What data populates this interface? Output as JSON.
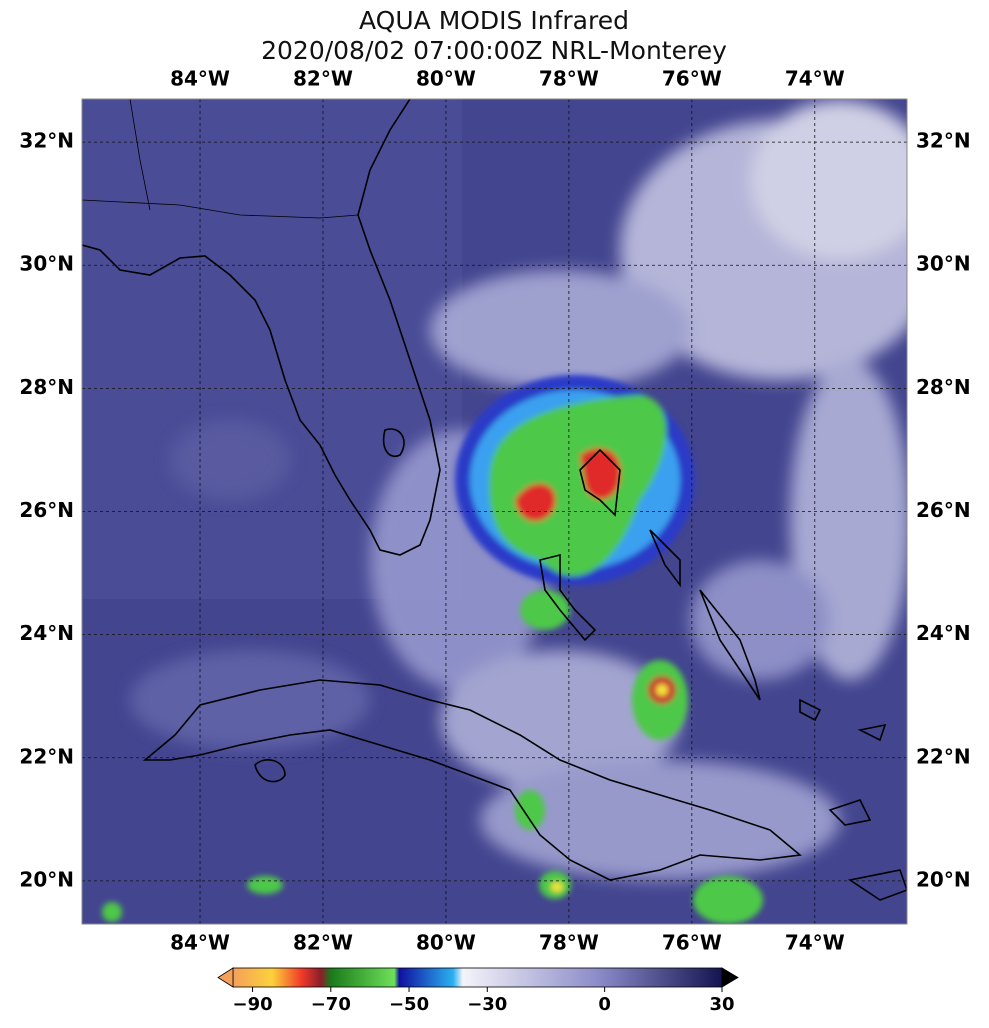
{
  "header": {
    "title": "AQUA MODIS Infrared",
    "subtitle": "2020/08/02 07:00:00Z NRL-Monterey"
  },
  "map": {
    "lon_lim": [
      -85.92,
      -72.5
    ],
    "lat_lim": [
      19.3,
      32.7
    ],
    "lon_ticks": [
      {
        "value": -84,
        "label": "84°W"
      },
      {
        "value": -82,
        "label": "82°W"
      },
      {
        "value": -80,
        "label": "80°W"
      },
      {
        "value": -78,
        "label": "78°W"
      },
      {
        "value": -76,
        "label": "76°W"
      },
      {
        "value": -74,
        "label": "74°W"
      }
    ],
    "lat_ticks": [
      {
        "value": 32,
        "label": "32°N"
      },
      {
        "value": 30,
        "label": "30°N"
      },
      {
        "value": 28,
        "label": "28°N"
      },
      {
        "value": 26,
        "label": "26°N"
      },
      {
        "value": 24,
        "label": "24°N"
      },
      {
        "value": 22,
        "label": "22°N"
      },
      {
        "value": 20,
        "label": "20°N"
      }
    ],
    "grid": true
  },
  "colorbar": {
    "range": [
      -95,
      30
    ],
    "ticks": [
      {
        "value": -90,
        "label": "−90"
      },
      {
        "value": -70,
        "label": "−70"
      },
      {
        "value": -50,
        "label": "−50"
      },
      {
        "value": -30,
        "label": "−30"
      },
      {
        "value": 0,
        "label": "0"
      },
      {
        "value": 30,
        "label": "30"
      }
    ]
  }
}
